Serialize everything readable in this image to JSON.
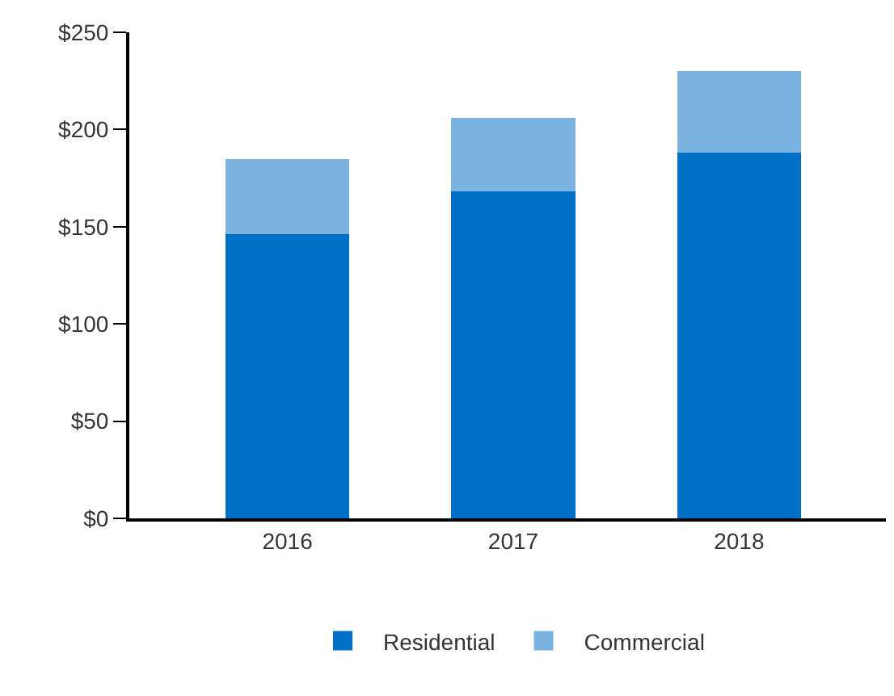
{
  "chart_data": {
    "type": "bar",
    "stacked": true,
    "categories": [
      "2016",
      "2017",
      "2018"
    ],
    "series": [
      {
        "name": "Residential",
        "color": "#0070c4",
        "values": [
          146,
          168,
          188
        ]
      },
      {
        "name": "Commercial",
        "color": "#7ab3e0",
        "values": [
          39,
          38,
          42
        ]
      }
    ],
    "ylim": [
      0,
      250
    ],
    "yticks": [
      {
        "value": 0,
        "label": "$0"
      },
      {
        "value": 50,
        "label": "$50"
      },
      {
        "value": 100,
        "label": "$100"
      },
      {
        "value": 150,
        "label": "$150"
      },
      {
        "value": 200,
        "label": "$200"
      },
      {
        "value": 250,
        "label": "$250"
      }
    ],
    "legend": "bottom"
  }
}
